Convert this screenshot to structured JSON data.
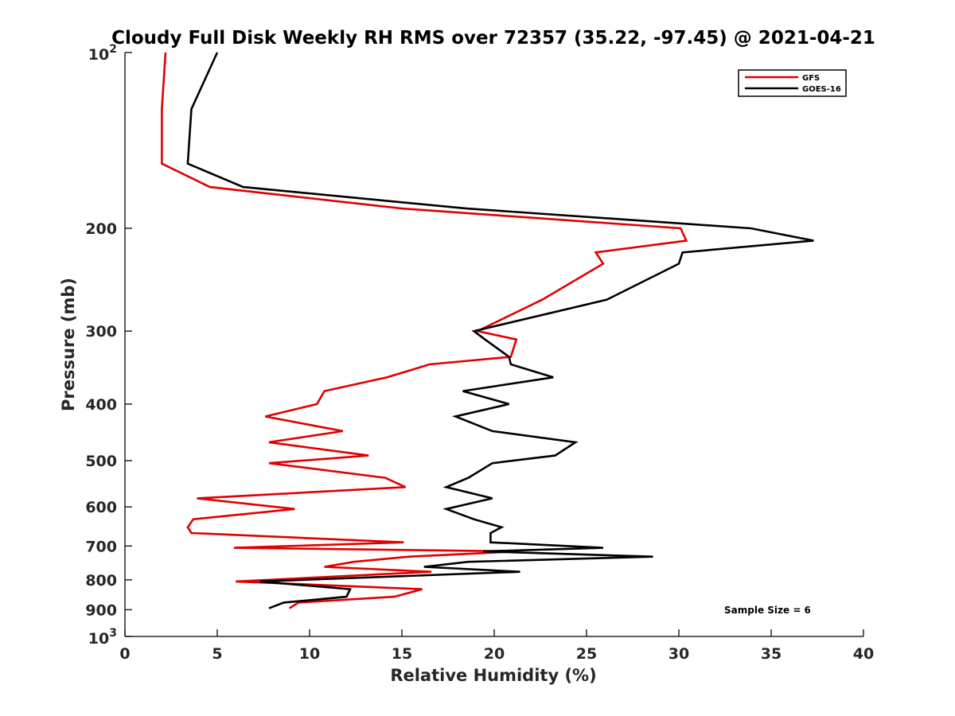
{
  "chart_data": {
    "type": "line",
    "title": "Cloudy Full Disk Weekly RH RMS over 72357 (35.22, -97.45) @ 2021-04-21",
    "xlabel": "Relative Humidity (%)",
    "ylabel": "Pressure (mb)",
    "xlim": [
      0,
      40
    ],
    "ylim": [
      100,
      1000
    ],
    "yscale": "log",
    "y_reversed": true,
    "xticks": [
      "0",
      "5",
      "10",
      "15",
      "20",
      "25",
      "30",
      "35",
      "40"
    ],
    "yticks": [
      {
        "value": 100,
        "base": "10",
        "exp": "2"
      },
      {
        "value": 200,
        "label": "200"
      },
      {
        "value": 300,
        "label": "300"
      },
      {
        "value": 400,
        "label": "400"
      },
      {
        "value": 500,
        "label": "500"
      },
      {
        "value": 600,
        "label": "600"
      },
      {
        "value": 700,
        "label": "700"
      },
      {
        "value": 800,
        "label": "800"
      },
      {
        "value": 900,
        "label": "900"
      },
      {
        "value": 1000,
        "base": "10",
        "exp": "3"
      }
    ],
    "grid": false,
    "legend_position": "top-right",
    "annotation": "Sample Size = 6",
    "series": [
      {
        "name": "GFS",
        "color": "#e00000",
        "x": [
          2.2,
          2.0,
          2.0,
          4.6,
          15.0,
          30.1,
          30.4,
          25.5,
          25.9,
          22.6,
          19.1,
          21.2,
          20.9,
          16.5,
          14.2,
          10.8,
          10.4,
          7.6,
          11.8,
          7.8,
          13.2,
          7.8,
          14.1,
          15.2,
          3.9,
          9.2,
          3.7,
          3.4,
          3.6,
          15.1,
          5.9,
          21.3,
          15.4,
          12.4,
          10.8,
          16.6,
          6.0,
          16.1,
          14.6,
          9.4,
          8.9
        ],
        "y": [
          100,
          125,
          155,
          170,
          185,
          200,
          210,
          220,
          230,
          265,
          300,
          310,
          332,
          342,
          360,
          380,
          400,
          420,
          445,
          465,
          490,
          505,
          535,
          555,
          580,
          605,
          630,
          650,
          665,
          690,
          705,
          715,
          730,
          745,
          760,
          775,
          805,
          830,
          855,
          875,
          895
        ]
      },
      {
        "name": "GOES-16",
        "color": "#000000",
        "x": [
          5.0,
          3.6,
          3.4,
          6.4,
          18.5,
          33.9,
          37.3,
          30.2,
          30.0,
          26.1,
          18.9,
          19.5,
          20.8,
          20.9,
          23.2,
          18.3,
          20.8,
          17.9,
          19.9,
          24.4,
          23.3,
          19.9,
          18.6,
          17.4,
          19.9,
          17.4,
          18.9,
          20.4,
          19.8,
          19.8,
          25.9,
          19.4,
          28.6,
          18.6,
          16.2,
          21.4,
          7.3,
          12.2,
          12.0,
          8.6,
          7.8
        ],
        "y": [
          100,
          125,
          155,
          170,
          185,
          200,
          210,
          220,
          230,
          265,
          300,
          310,
          332,
          342,
          360,
          380,
          400,
          420,
          445,
          465,
          490,
          505,
          535,
          555,
          580,
          605,
          630,
          650,
          665,
          690,
          705,
          715,
          730,
          745,
          760,
          775,
          805,
          830,
          855,
          875,
          895
        ]
      }
    ]
  }
}
